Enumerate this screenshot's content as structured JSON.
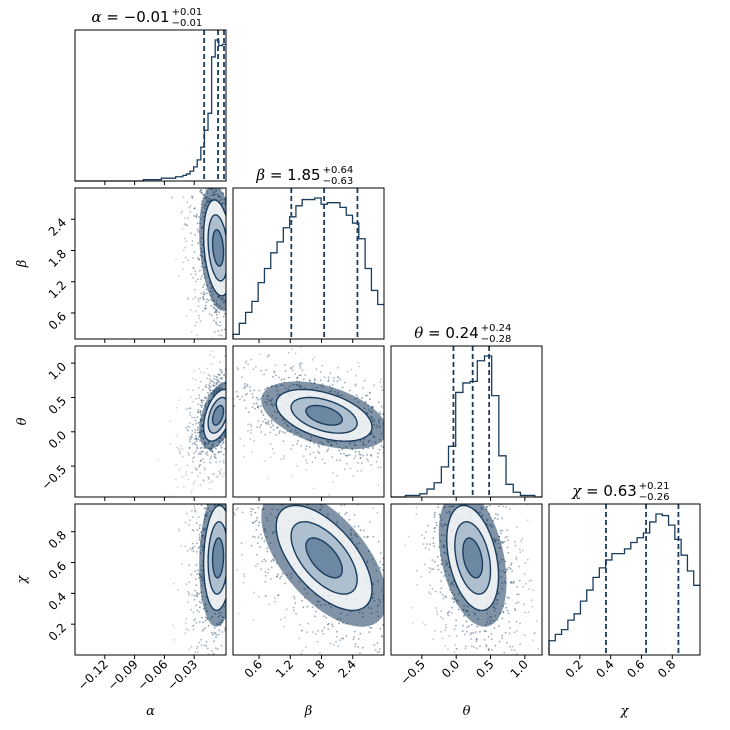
{
  "chart_data": {
    "type": "corner",
    "color": "#1a3d5e",
    "parameters": [
      {
        "name": "alpha",
        "symbol": "α",
        "label": "α",
        "median": "-0.01",
        "upper": "+0.01",
        "lower": "-0.01",
        "range": [
          -0.15,
          0.002
        ],
        "ticks": [
          "-0.12",
          "-0.09",
          "-0.06",
          "-0.03"
        ],
        "tick_values": [
          -0.12,
          -0.09,
          -0.06,
          -0.03
        ],
        "quantiles": [
          -0.02,
          -0.006,
          0.0
        ],
        "hist": [
          0,
          0,
          0,
          0,
          0,
          0,
          0,
          0,
          0,
          0,
          0,
          0,
          0,
          0,
          0,
          0,
          0,
          0,
          0,
          1,
          1,
          1,
          1,
          1,
          2,
          2,
          2,
          2,
          3,
          3,
          4,
          5,
          7,
          10,
          15,
          24,
          36,
          48,
          88,
          100,
          96,
          97
        ]
      },
      {
        "name": "beta",
        "symbol": "β",
        "label": "β",
        "median": "1.85",
        "upper": "+0.64",
        "lower": "-0.63",
        "range": [
          0.1,
          3.0
        ],
        "ticks": [
          "0.6",
          "1.2",
          "1.8",
          "2.4"
        ],
        "tick_values": [
          0.6,
          1.2,
          1.8,
          2.4
        ],
        "quantiles": [
          1.22,
          1.85,
          2.49
        ],
        "hist": [
          3,
          10,
          17,
          24,
          36,
          45,
          55,
          62,
          71,
          78,
          85,
          89,
          89,
          90,
          86,
          87,
          87,
          84,
          79,
          74,
          64,
          45,
          31,
          22
        ]
      },
      {
        "name": "theta",
        "symbol": "θ",
        "label": "θ",
        "median": "0.24",
        "upper": "+0.24",
        "lower": "-0.28",
        "range": [
          -0.95,
          1.25
        ],
        "ticks": [
          "-0.5",
          "0.0",
          "0.5",
          "1.0"
        ],
        "tick_values": [
          -0.5,
          0.0,
          0.5,
          1.0
        ],
        "quantiles": [
          -0.04,
          0.24,
          0.48
        ],
        "hist": [
          0,
          0,
          1,
          1,
          2,
          5,
          9,
          19,
          32,
          66,
          72,
          73,
          86,
          89,
          64,
          26,
          8,
          3,
          1,
          1,
          0
        ]
      },
      {
        "name": "chi",
        "symbol": "χ",
        "label": "χ",
        "median": "0.63",
        "upper": "+0.21",
        "lower": "-0.26",
        "range": [
          0.0,
          0.98
        ],
        "ticks": [
          "0.2",
          "0.4",
          "0.6",
          "0.8"
        ],
        "tick_values": [
          0.2,
          0.4,
          0.6,
          0.8
        ],
        "quantiles": [
          0.37,
          0.63,
          0.84
        ],
        "hist": [
          9,
          13,
          16,
          22,
          26,
          34,
          41,
          49,
          55,
          60,
          64,
          64,
          67,
          71,
          74,
          77,
          84,
          89,
          88,
          82,
          73,
          63,
          53,
          44
        ]
      }
    ],
    "correlations": {
      "1,0": -0.25,
      "2,0": 0.45,
      "2,1": -0.45,
      "3,0": 0.1,
      "3,1": -0.6,
      "3,2": -0.35
    },
    "title": ""
  }
}
